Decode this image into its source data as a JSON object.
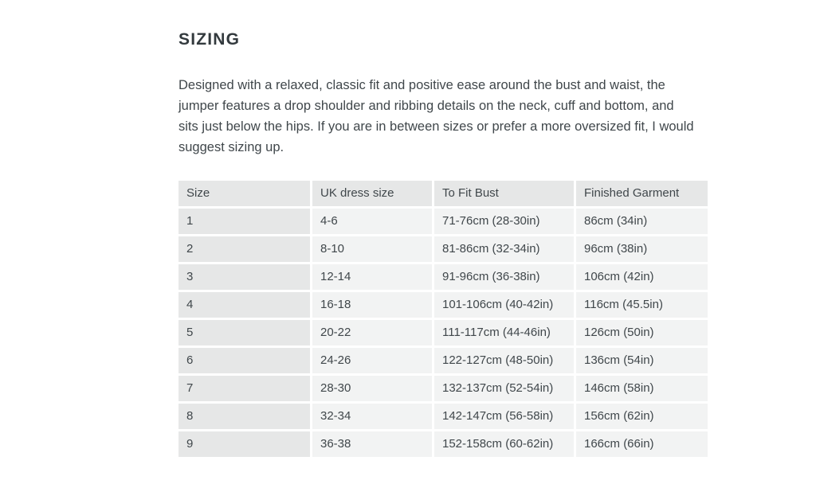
{
  "section": {
    "title": "SIZING",
    "description": "Designed with a relaxed, classic fit and positive ease around the bust and waist, the jumper features a drop shoulder and ribbing details on the neck, cuff and bottom, and sits just below the hips. If you are in between sizes or prefer a more oversized fit, I would suggest sizing up."
  },
  "table": {
    "headers": [
      "Size",
      "UK dress size",
      "To Fit Bust",
      "Finished Garment"
    ],
    "rows": [
      [
        "1",
        "4-6",
        "71-76cm (28-30in)",
        "86cm (34in)"
      ],
      [
        "2",
        "8-10",
        "81-86cm (32-34in)",
        "96cm (38in)"
      ],
      [
        "3",
        "12-14",
        "91-96cm (36-38in)",
        "106cm (42in)"
      ],
      [
        "4",
        "16-18",
        "101-106cm (40-42in)",
        "116cm (45.5in)"
      ],
      [
        "5",
        "20-22",
        "111-117cm (44-46in)",
        "126cm (50in)"
      ],
      [
        "6",
        "24-26",
        "122-127cm (48-50in)",
        "136cm (54in)"
      ],
      [
        "7",
        "28-30",
        "132-137cm (52-54in)",
        "146cm (58in)"
      ],
      [
        "8",
        "32-34",
        "142-147cm (56-58in)",
        "156cm (62in)"
      ],
      [
        "9",
        "36-38",
        "152-158cm (60-62in)",
        "166cm (66in)"
      ]
    ]
  },
  "colors": {
    "page_bg": "#ffffff",
    "heading_text": "#333a3e",
    "body_text": "#40474b",
    "header_cell_bg": "#e6e7e7",
    "body_cell_bg": "#f2f3f3",
    "gap_color": "#ffffff"
  }
}
